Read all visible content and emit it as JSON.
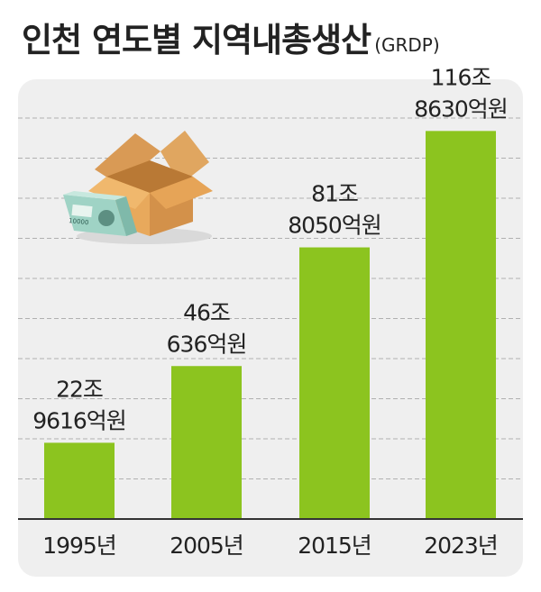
{
  "title": "인천 연도별 지역내총생산",
  "title_suffix": "(GRDP)",
  "colors": {
    "bar": "#8cc41f",
    "panel": "#efefef",
    "grid": "#b0b0b0",
    "axis": "#333333",
    "text": "#222222"
  },
  "chart_data": {
    "type": "bar",
    "title": "인천 연도별 지역내총생산(GRDP)",
    "categories": [
      "1995년",
      "2005년",
      "2015년",
      "2023년"
    ],
    "values": [
      229616,
      460636,
      818050,
      1168630
    ],
    "value_unit": "억원",
    "data_labels": [
      [
        "22조",
        "9616억원"
      ],
      [
        "46조",
        "636억원"
      ],
      [
        "81조",
        "8050억원"
      ],
      [
        "116조",
        "8630억원"
      ]
    ],
    "xlabel": "",
    "ylabel": "",
    "ylim": [
      0,
      1175000
    ],
    "grid": true,
    "legend": "none"
  },
  "illustration": {
    "icon": "money-box-icon"
  }
}
